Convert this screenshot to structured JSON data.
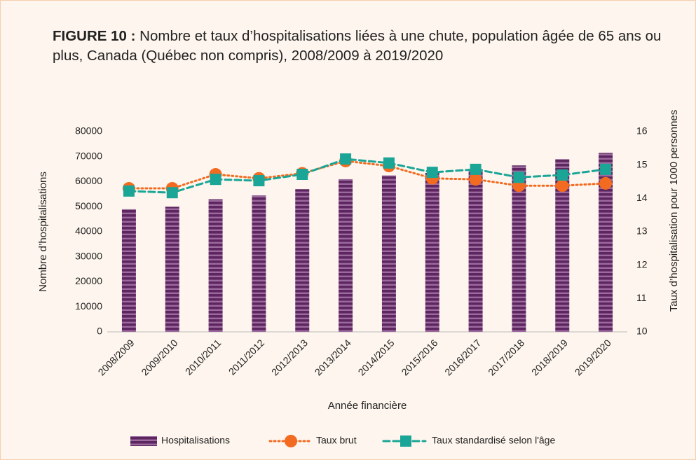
{
  "chart_data": {
    "type": "bar_line",
    "title_label": "FIGURE 10 :",
    "title": "Nombre et taux d’hospitalisations liées à une chute, population âgée de 65 ans ou plus, Canada (Québec non compris), 2008/2009 à 2019/2020",
    "x_label": "Année financière",
    "y_label": "Nombre d’hospitalisations",
    "y2_label": "Taux d’hospitalisation pour 1000 personnes",
    "categories": [
      "2008/2009",
      "2009/2010",
      "2010/2011",
      "2011/2012",
      "2012/2013",
      "2013/2014",
      "2014/2015",
      "2015/2016",
      "2016/2017",
      "2017/2018",
      "2018/2019",
      "2019/2020"
    ],
    "series": [
      {
        "name": "Hospitalisations",
        "color": "#6d2f6f",
        "kind": "bar",
        "values": [
          49000,
          50000,
          53000,
          54500,
          57000,
          61000,
          62500,
          63500,
          65000,
          66500,
          69000,
          71500
        ]
      },
      {
        "name": "Taux brut",
        "color": "#f26b21",
        "kind": "line",
        "axis": "y2",
        "values": [
          14.3,
          14.3,
          14.72,
          14.6,
          14.75,
          15.12,
          14.97,
          14.6,
          14.57,
          14.38,
          14.38,
          14.45
        ]
      },
      {
        "name": "Taux standardisé selon l'âge",
        "color": "#1aa596",
        "kind": "line",
        "axis": "y2",
        "values": [
          14.22,
          14.17,
          14.57,
          14.53,
          14.72,
          15.18,
          15.06,
          14.78,
          14.87,
          14.63,
          14.7,
          14.87
        ]
      }
    ],
    "ylim": [
      0,
      80000
    ],
    "yticks": [
      0,
      10000,
      20000,
      30000,
      40000,
      50000,
      60000,
      70000,
      80000
    ],
    "y2lim": [
      10,
      16
    ],
    "y2ticks": [
      10,
      11,
      12,
      13,
      14,
      15,
      16
    ]
  }
}
